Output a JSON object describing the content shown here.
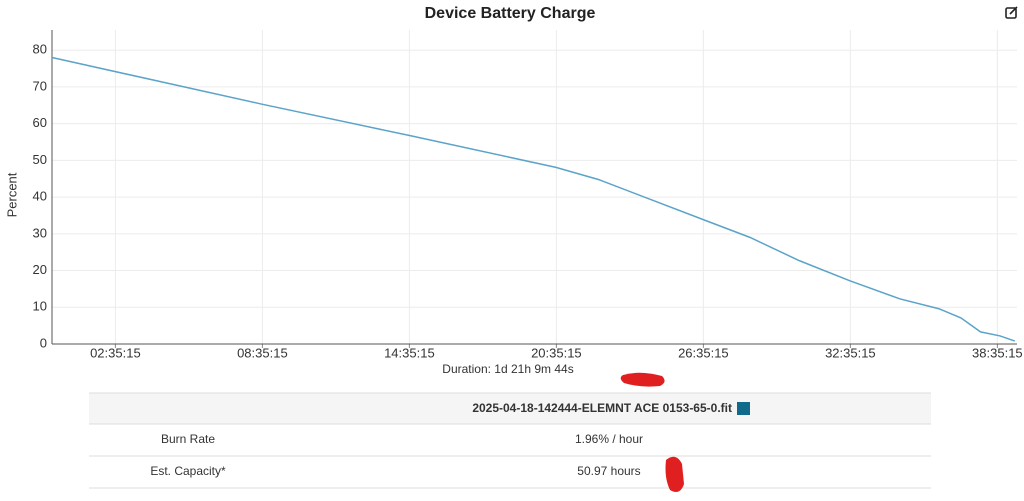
{
  "chart_data": {
    "type": "line",
    "title": "Device Battery Charge",
    "y_label": "Percent",
    "x_label": "Duration: 1d 21h 9m 44s",
    "x": [
      0,
      30852,
      52452,
      74052,
      80280,
      95652,
      102600,
      109800,
      117252,
      124560,
      130320,
      133560,
      136440,
      139320,
      141480
    ],
    "series": [
      {
        "name": "2025-04-18-142444-ELEMNT ACE 0153-65-0.fit",
        "color": "#5ba3c9",
        "values": [
          78,
          65.3,
          56.8,
          48.1,
          44.8,
          33.9,
          29,
          22.7,
          17.2,
          12.3,
          9.6,
          7.1,
          3.3,
          2.2,
          0.8
        ]
      }
    ],
    "legend_color": "#0f6a8c",
    "xlim": [
      0,
      141800
    ],
    "ylim": [
      0,
      85.5
    ],
    "xticks": [
      {
        "value": 9315,
        "label": "02:35:15"
      },
      {
        "value": 30915,
        "label": "08:35:15"
      },
      {
        "value": 52515,
        "label": "14:35:15"
      },
      {
        "value": 74115,
        "label": "20:35:15"
      },
      {
        "value": 95715,
        "label": "26:35:15"
      },
      {
        "value": 117315,
        "label": "32:35:15"
      },
      {
        "value": 138915,
        "label": "38:35:15"
      }
    ],
    "yticks": [
      0,
      10,
      20,
      30,
      40,
      50,
      60,
      70,
      80
    ],
    "grid": true
  },
  "table": {
    "rows": [
      [
        "Burn Rate",
        "1.96% / hour"
      ],
      [
        "Est. Capacity*",
        "50.97 hours"
      ]
    ]
  }
}
